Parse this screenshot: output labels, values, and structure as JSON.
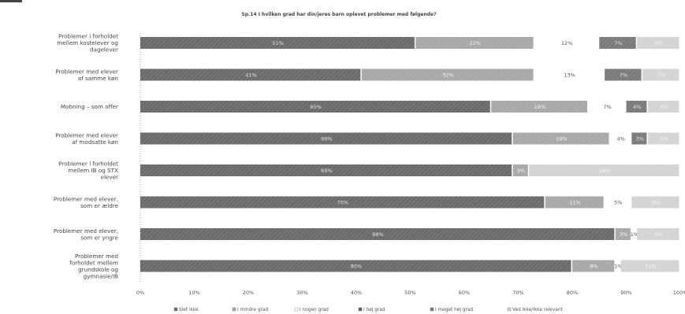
{
  "chart_data": {
    "type": "bar",
    "stacked": true,
    "orientation": "horizontal",
    "title": "Sp.14 I hvilken grad har din/jeres barn oplevet problemer med følgende?",
    "subtitle": "",
    "xlim": [
      0,
      100
    ],
    "x_ticks": [
      "0%",
      "10%",
      "20%",
      "30%",
      "40%",
      "50%",
      "60%",
      "70%",
      "80%",
      "90%",
      "100%"
    ],
    "grid": false,
    "legend_position": "bottom",
    "categories": [
      "Problemer i forholdet mellem kostelever og dagelever",
      "Problemer med elever af samme køn",
      "Mobning – som offer",
      "Problemer med elever af modsatte køn",
      "Problemer i forholdet mellem IB og STX elever",
      "Problemer med elever, som er ældre",
      "Problemer med elever, som er yngre",
      "Problemer med forholdet mellem grundskole og gymnasie/IB"
    ],
    "series": [
      {
        "name": "Slet ikke",
        "color": "#6b6b6b",
        "values": [
          51,
          41,
          65,
          69,
          69,
          75,
          88,
          80
        ],
        "labels": [
          "51%",
          "41%",
          "65%",
          "69%",
          "69%",
          "75%",
          "88%",
          "80%"
        ]
      },
      {
        "name": "I mindre grad",
        "color": "#a8a8a8",
        "values": [
          22,
          32,
          18,
          18,
          3,
          11,
          3,
          8
        ],
        "labels": [
          "22%",
          "32%",
          "18%",
          "18%",
          "3%",
          "11%",
          "3%",
          "8%"
        ]
      },
      {
        "name": "I nogen grad",
        "color": "#ffffff",
        "values": [
          12,
          13,
          7,
          4,
          0,
          5,
          1,
          1
        ],
        "labels": [
          "12%",
          "13%",
          "7%",
          "4%",
          "",
          "5%",
          "1%",
          "1%"
        ]
      },
      {
        "name": "I høj grad",
        "color": "#5a5a5a",
        "values": [
          0,
          0,
          0,
          0,
          0,
          0,
          0,
          0
        ],
        "labels": [
          "",
          "",
          "",
          "",
          "",
          "",
          "",
          ""
        ]
      },
      {
        "name": "I meget høj grad",
        "color": "#7a7a7a",
        "values": [
          7,
          7,
          4,
          3,
          0,
          0,
          0,
          0
        ],
        "labels": [
          "7%",
          "7%",
          "4%",
          "3%",
          "",
          "",
          "",
          ""
        ]
      },
      {
        "name": "Ved ikke/Ikke relevant",
        "color": "#d4d4d4",
        "values": [
          8,
          7,
          6,
          6,
          28,
          9,
          8,
          11
        ],
        "labels": [
          "8%",
          "7%",
          "6%",
          "6%",
          "28%",
          "9%",
          "8%",
          "11%"
        ]
      }
    ]
  }
}
